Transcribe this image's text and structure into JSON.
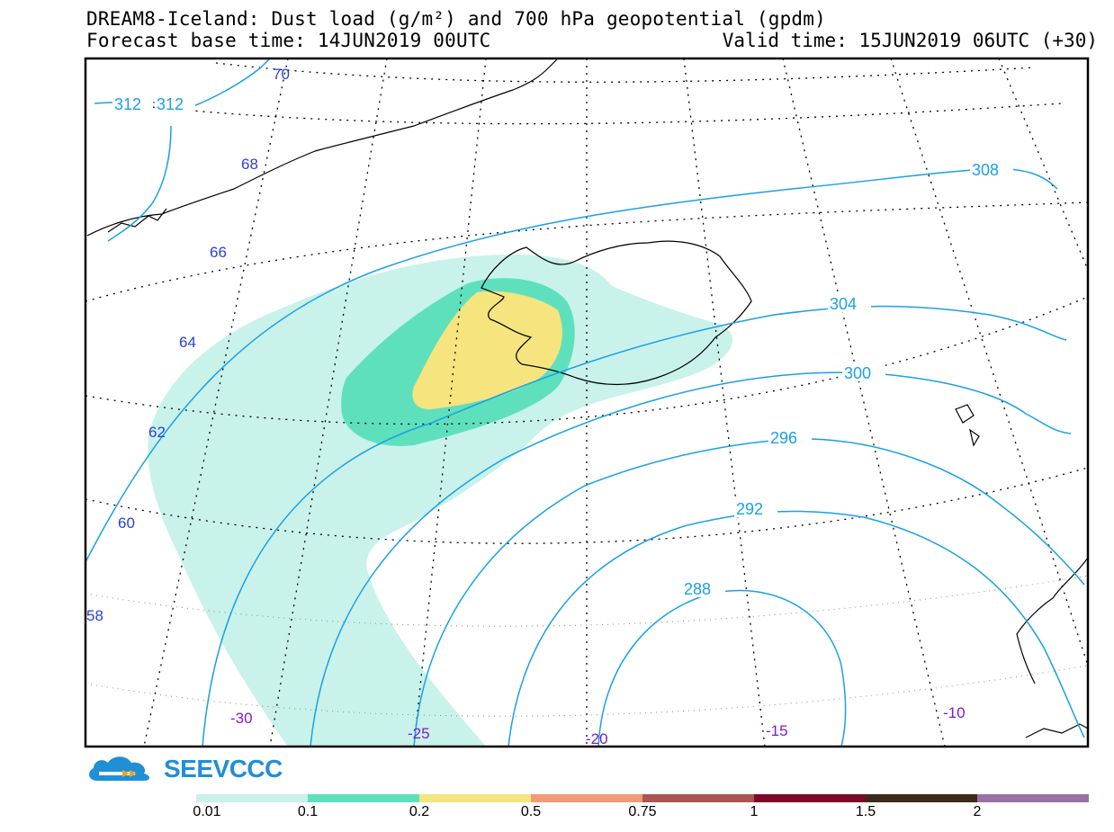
{
  "title": {
    "line1": "DREAM8-Iceland: Dust load (g/m²) and 700 hPa geopotential (gpdm)",
    "base": "Forecast base time: 14JUN2019 00UTC",
    "valid": "Valid time: 15JUN2019 06UTC (+30)"
  },
  "logo": {
    "text": "SEEVCCC"
  },
  "lat_labels": [
    "70",
    "68",
    "66",
    "64",
    "62",
    "60",
    "58"
  ],
  "lon_labels": [
    "-30",
    "-25",
    "-20",
    "-15",
    "-10"
  ],
  "contour_labels": [
    "312",
    "312",
    "308",
    "304",
    "300",
    "296",
    "292",
    "288"
  ],
  "legend": {
    "colors": [
      "#c9f2ea",
      "#5fe0bd",
      "#f6e47e",
      "#ef9a78",
      "#a85650",
      "#7b0a2a",
      "#3d2a1a",
      "#9a70a5"
    ],
    "ticks": [
      "0.01",
      "0.1",
      "0.2",
      "0.5",
      "0.75",
      "1",
      "1.5",
      "2"
    ]
  },
  "colors": {
    "contour": "#1aa0e6",
    "lat_label": "#2a3fd8",
    "lon_label": "#7a1ec8"
  }
}
